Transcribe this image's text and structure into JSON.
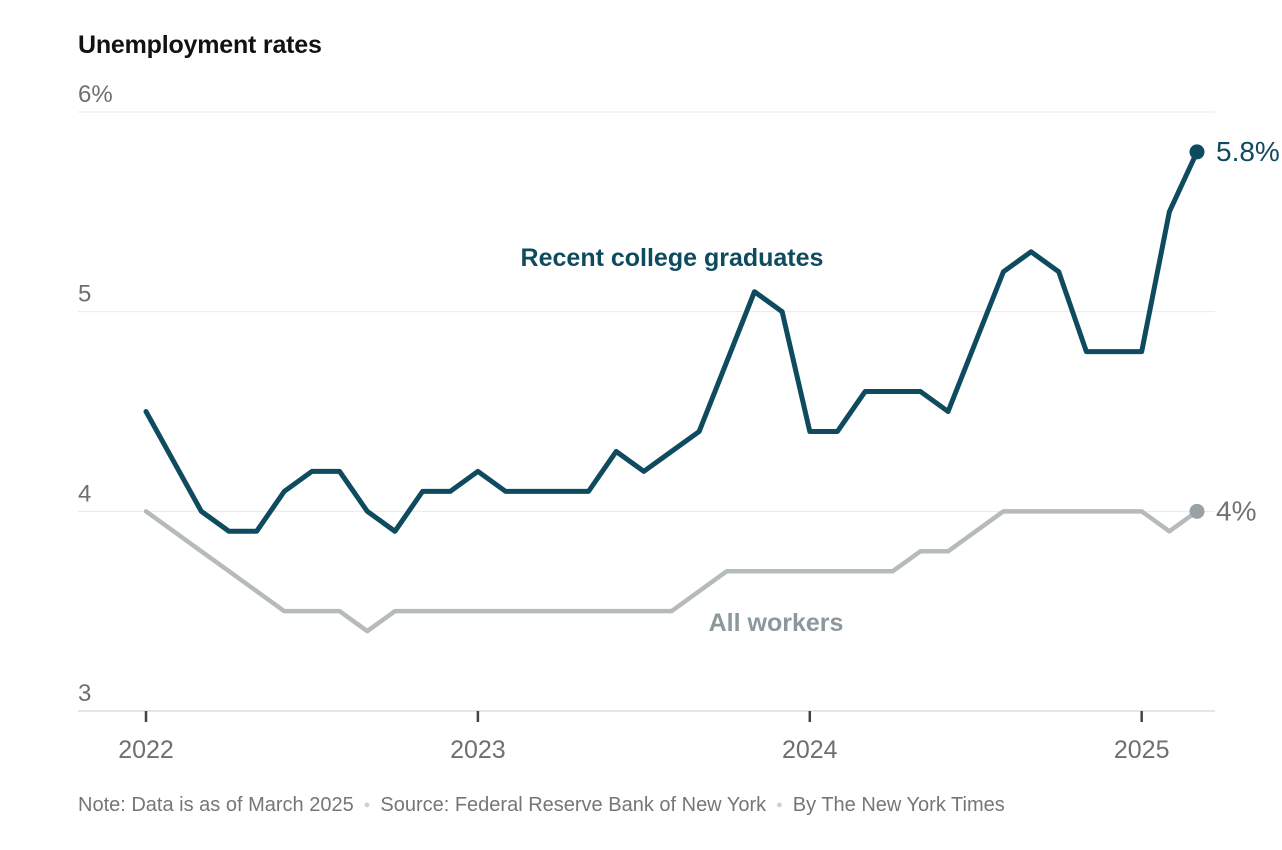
{
  "title": "Unemployment rates",
  "footer": {
    "note": "Note: Data is as of March 2025",
    "source": "Source: Federal Reserve Bank of New York",
    "byline": "By The New York Times",
    "separator": "●"
  },
  "colors": {
    "grads_line": "#0F4B5F",
    "workers_line": "#B5BABD",
    "workers_dot": "#9BA2A6",
    "workers_label": "#8D979C",
    "end_label_gray": "#6E7478",
    "axis_text": "#6F6F6F",
    "gridline": "#E9E9E9",
    "axis_line": "#DEDEDE",
    "tick": "#444444",
    "title_text": "#121212",
    "footer_text": "#767676"
  },
  "chart_data": {
    "type": "line",
    "title": "Unemployment rates",
    "x_unit": "month",
    "x_start": "2022-01",
    "x_end": "2025-03",
    "x_interval": "monthly",
    "n_points": 39,
    "ylim": [
      3,
      6
    ],
    "grid": true,
    "legend_position": "inline-annotations",
    "yticks": [
      {
        "value": 6,
        "label": "6%"
      },
      {
        "value": 5,
        "label": "5"
      },
      {
        "value": 4,
        "label": "4"
      },
      {
        "value": 3,
        "label": "3"
      }
    ],
    "xticks": [
      {
        "index": 0,
        "label": "2022"
      },
      {
        "index": 12,
        "label": "2023"
      },
      {
        "index": 24,
        "label": "2024"
      },
      {
        "index": 36,
        "label": "2025"
      }
    ],
    "series": [
      {
        "name": "Recent college graduates",
        "end_label": "5.8%",
        "values": [
          4.5,
          4.25,
          4.0,
          3.9,
          3.9,
          4.1,
          4.2,
          4.2,
          4.0,
          3.9,
          4.1,
          4.1,
          4.2,
          4.1,
          4.1,
          4.1,
          4.1,
          4.3,
          4.2,
          4.3,
          4.4,
          4.75,
          5.1,
          5.0,
          4.4,
          4.4,
          4.6,
          4.6,
          4.6,
          4.5,
          4.85,
          5.2,
          5.3,
          5.2,
          4.8,
          4.8,
          4.8,
          5.5,
          5.8
        ]
      },
      {
        "name": "All workers",
        "end_label": "4%",
        "values": [
          4.0,
          3.9,
          3.8,
          3.7,
          3.6,
          3.5,
          3.5,
          3.5,
          3.4,
          3.5,
          3.5,
          3.5,
          3.5,
          3.5,
          3.5,
          3.5,
          3.5,
          3.5,
          3.5,
          3.5,
          3.6,
          3.7,
          3.7,
          3.7,
          3.7,
          3.7,
          3.7,
          3.7,
          3.8,
          3.8,
          3.9,
          4.0,
          4.0,
          4.0,
          4.0,
          4.0,
          4.0,
          3.9,
          4.0
        ]
      }
    ]
  }
}
